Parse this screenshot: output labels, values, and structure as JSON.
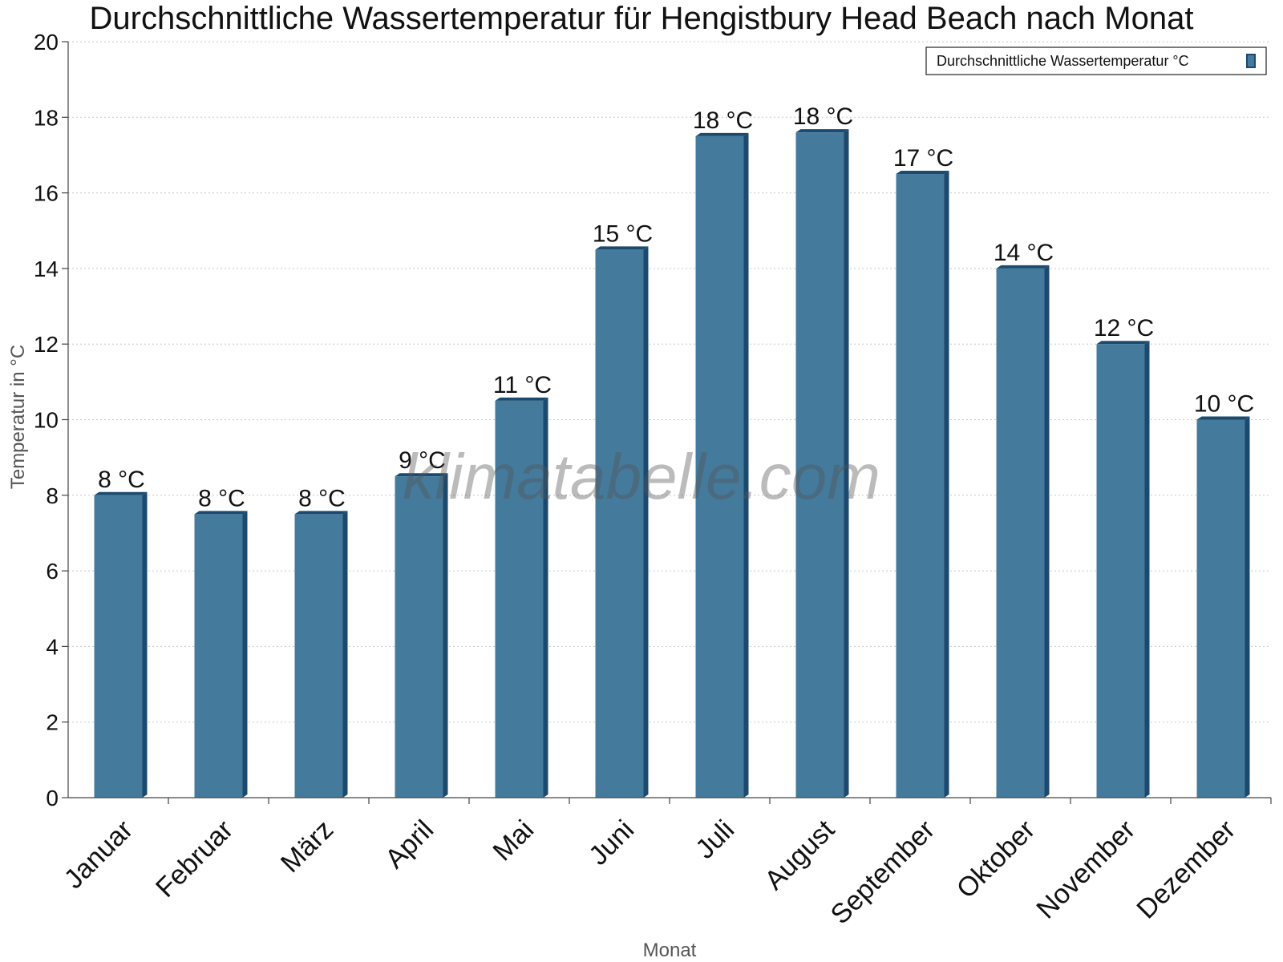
{
  "watermark": "klimatabelle.com",
  "colors": {
    "bar": "#447a9c",
    "bar_side": "#1c4a6e",
    "bar_top": "#1c4a6e"
  },
  "chart_data": {
    "type": "bar",
    "title": "Durchschnittliche Wassertemperatur für Hengistbury Head Beach nach Monat",
    "xlabel": "Monat",
    "ylabel": "Temperatur in °C",
    "ylim": [
      0,
      20
    ],
    "yticks": [
      0,
      2,
      4,
      6,
      8,
      10,
      12,
      14,
      16,
      18,
      20
    ],
    "grid": true,
    "legend_position": "top-right",
    "categories": [
      "Januar",
      "Februar",
      "März",
      "April",
      "Mai",
      "Juni",
      "Juli",
      "August",
      "September",
      "Oktober",
      "November",
      "Dezember"
    ],
    "series": [
      {
        "name": "Durchschnittliche Wassertemperatur °C",
        "values": [
          8.0,
          7.5,
          7.5,
          8.5,
          10.5,
          14.5,
          17.5,
          17.6,
          16.5,
          14.0,
          12.0,
          10.0
        ],
        "labels": [
          "8 °C",
          "8 °C",
          "8 °C",
          "9 °C",
          "11 °C",
          "15 °C",
          "18 °C",
          "18 °C",
          "17 °C",
          "14 °C",
          "12 °C",
          "10 °C"
        ]
      }
    ]
  }
}
